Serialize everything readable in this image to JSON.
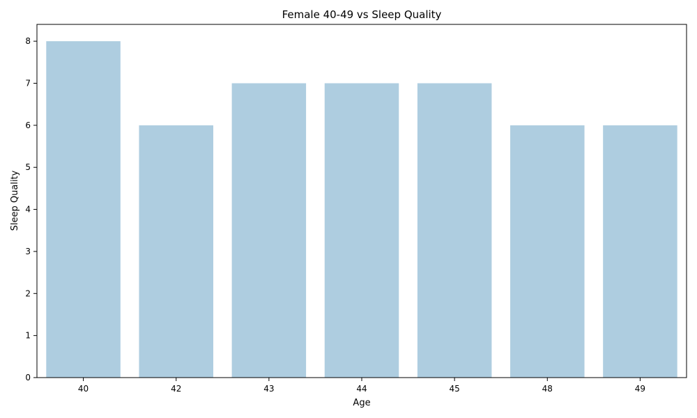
{
  "chart_data": {
    "type": "bar",
    "title": "Female 40-49 vs Sleep Quality",
    "xlabel": "Age",
    "ylabel": "Sleep Quality",
    "categories": [
      "40",
      "42",
      "43",
      "44",
      "45",
      "48",
      "49"
    ],
    "values": [
      8,
      6,
      7,
      7,
      7,
      6,
      6
    ],
    "ylim": [
      0,
      8.4
    ],
    "yticks": [
      "0",
      "1",
      "2",
      "3",
      "4",
      "5",
      "6",
      "7",
      "8"
    ],
    "grid": false,
    "bar_color": "#aecde0"
  }
}
